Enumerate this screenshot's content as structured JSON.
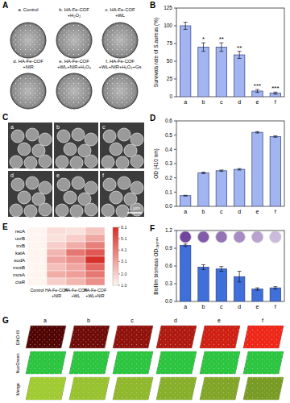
{
  "chart_data": [
    {
      "type": "bar",
      "title": "B",
      "y_label": "Survivals rate of S.aureus (%)",
      "categories": [
        "a",
        "b",
        "c",
        "d",
        "e",
        "f"
      ],
      "values": [
        100,
        70,
        70,
        59,
        8,
        5
      ],
      "errors": [
        5,
        6,
        6,
        5,
        2,
        1.5
      ],
      "significance": [
        null,
        "*",
        "**",
        "**",
        "***",
        "***"
      ],
      "color": "#a3b5f0",
      "ylim": [
        0,
        125
      ],
      "yticks": [
        0,
        25,
        50,
        75,
        100,
        125
      ]
    },
    {
      "type": "bar",
      "title": "D",
      "y_label": "OD (410 nm)",
      "categories": [
        "a",
        "b",
        "c",
        "d",
        "e",
        "f"
      ],
      "values": [
        0.075,
        0.235,
        0.25,
        0.26,
        0.52,
        0.49
      ],
      "errors": [
        0.003,
        0.005,
        0.005,
        0.005,
        0.005,
        0.005
      ],
      "color": "#a3b5f0",
      "ylim": [
        0,
        0.6
      ],
      "yticks": [
        {
          "value": 0,
          "label": "0.0"
        },
        0.1,
        0.2,
        0.3,
        0.4,
        0.5,
        0.6
      ]
    },
    {
      "type": "heatmap",
      "title": "E",
      "x": [
        "Control",
        "HA-Fe-COF +NIR",
        "HA-Fe-COF +WL",
        "HA-Fe-COF +WL+NIR"
      ],
      "y": [
        "recA",
        "uvrB",
        "trxB",
        "katA",
        "sodA",
        "mcsB",
        "mcsA",
        "ctsR"
      ],
      "values": [
        [
          1,
          1.6,
          1.5,
          2.2
        ],
        [
          1,
          1.5,
          2.0,
          3.0
        ],
        [
          1,
          2.0,
          2.8,
          4.0
        ],
        [
          1,
          2.6,
          4.2,
          5.0
        ],
        [
          1,
          3.0,
          3.6,
          6.0
        ],
        [
          1,
          2.4,
          3.0,
          4.6
        ],
        [
          1,
          2.8,
          3.2,
          4.2
        ],
        [
          1,
          2.0,
          2.6,
          3.6
        ]
      ],
      "color_range": [
        1.0,
        6.1
      ],
      "color_ticks": [
        6.1,
        5.1,
        4.1,
        3.1,
        {
          "value": 2,
          "label": "2.0"
        },
        {
          "value": 1,
          "label": "1.0"
        }
      ]
    },
    {
      "type": "bar",
      "title": "F",
      "y_label": "Biofilm biomass OD₅₉₀ₙₘ",
      "categories": [
        "a",
        "b",
        "c",
        "d",
        "e",
        "f"
      ],
      "values": [
        0.95,
        0.58,
        0.55,
        0.42,
        0.21,
        0.23
      ],
      "errors": [
        0.02,
        0.04,
        0.04,
        0.09,
        0.02,
        0.02
      ],
      "color": "#3f6fd8",
      "ylim": [
        0,
        1.2
      ],
      "yticks": [
        {
          "value": 0,
          "label": "0.0"
        },
        0.3,
        0.6,
        0.9,
        1.2
      ]
    }
  ],
  "panels": {
    "A": {
      "label": "A",
      "dishes": [
        "a. Control",
        "b. HA-Fe-COF +H₂O₂",
        "c. HA-Fe-COF +WL",
        "d. HA-Fe-COF +NIR",
        "e. HA-Fe-COF +WL+NIR+H₂O₂",
        "f. HA-Fe-COF +WL+NIR+H₂O₂+Gs"
      ]
    },
    "C": {
      "label": "C",
      "images": [
        "a",
        "b",
        "c",
        "d",
        "e",
        "f"
      ],
      "scale_bar": "1 μm"
    },
    "G": {
      "label": "G",
      "columns": [
        "a",
        "b",
        "c",
        "d",
        "e",
        "f"
      ],
      "rows": [
        "EthD-III",
        "NucGreen",
        "Merge"
      ]
    }
  }
}
